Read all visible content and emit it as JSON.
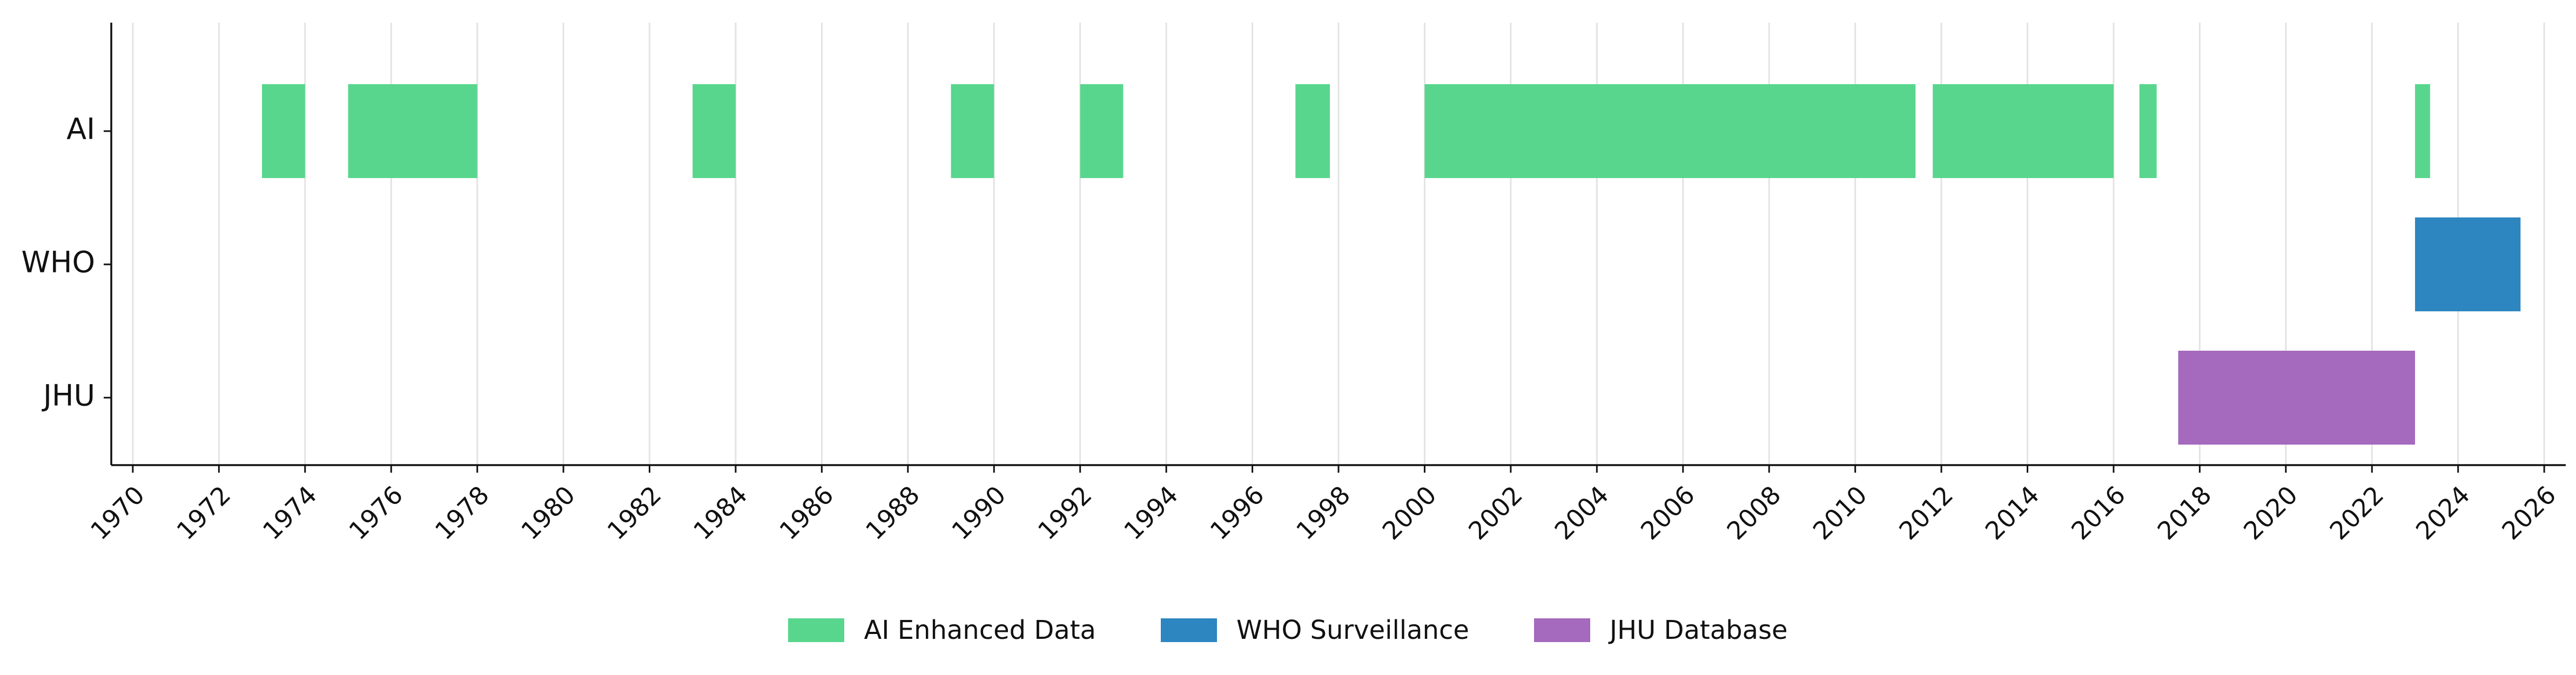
{
  "chart_data": {
    "type": "gantt",
    "title": "",
    "xlabel": "",
    "ylabel": "",
    "categories": [
      "AI",
      "WHO",
      "JHU"
    ],
    "xlim": [
      1969.5,
      2026.5
    ],
    "x_ticks": [
      1970,
      1972,
      1974,
      1976,
      1978,
      1980,
      1982,
      1984,
      1986,
      1988,
      1990,
      1992,
      1994,
      1996,
      1998,
      2000,
      2002,
      2004,
      2006,
      2008,
      2010,
      2012,
      2014,
      2016,
      2018,
      2020,
      2022,
      2024,
      2026
    ],
    "grid": "vertical",
    "legend_placement": "bottom-center",
    "series": [
      {
        "name": "AI Enhanced Data",
        "category": "AI",
        "color": "#58d68d",
        "intervals": [
          [
            1973.0,
            1974.0
          ],
          [
            1975.0,
            1978.0
          ],
          [
            1983.0,
            1984.0
          ],
          [
            1989.0,
            1990.0
          ],
          [
            1992.0,
            1993.0
          ],
          [
            1997.0,
            1997.8
          ],
          [
            2000.0,
            2011.4
          ],
          [
            2011.8,
            2016.0
          ],
          [
            2016.6,
            2017.0
          ],
          [
            2023.0,
            2023.35
          ]
        ]
      },
      {
        "name": "WHO Surveillance",
        "category": "WHO",
        "color": "#2e86c1",
        "intervals": [
          [
            2023.0,
            2025.45
          ]
        ]
      },
      {
        "name": "JHU Database",
        "category": "JHU",
        "color": "#a569bd",
        "intervals": [
          [
            2017.5,
            2023.0
          ]
        ]
      }
    ]
  }
}
